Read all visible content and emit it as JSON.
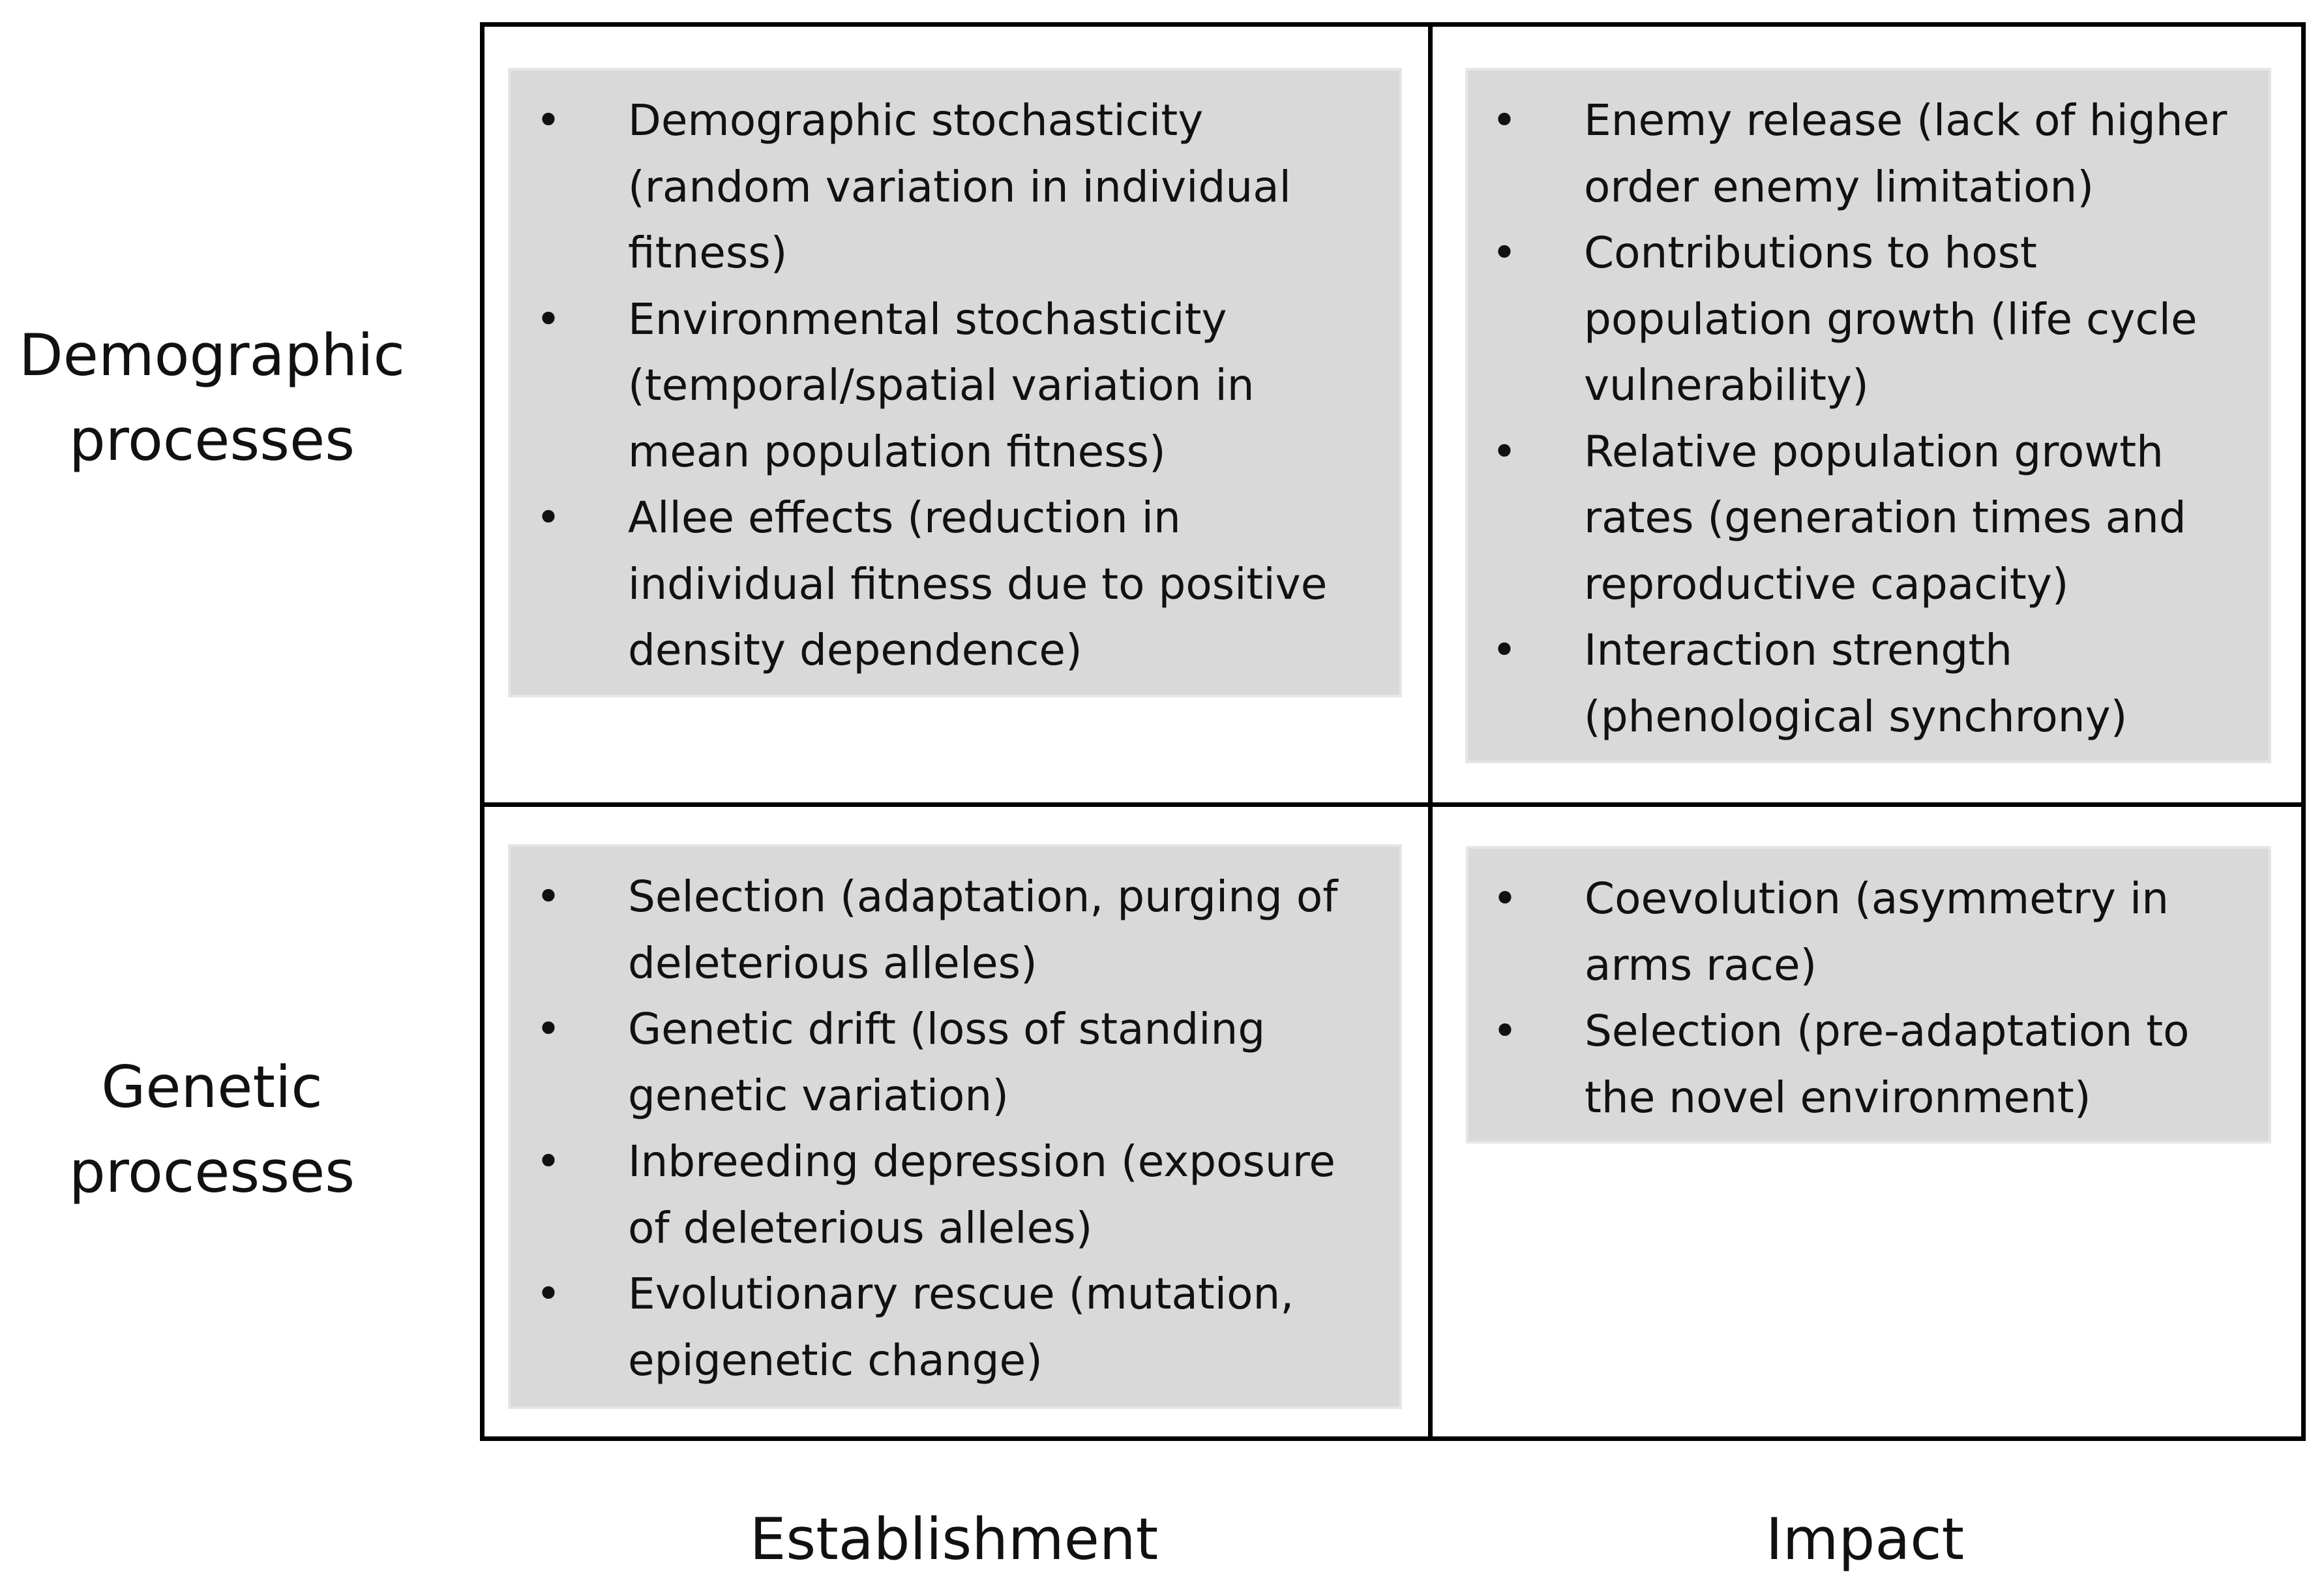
{
  "row_labels": {
    "demographic": [
      "Demographic",
      "processes"
    ],
    "genetic": [
      "Genetic",
      "processes"
    ]
  },
  "column_labels": {
    "establishment": "Establishment",
    "impact": "Impact"
  },
  "bullet_symbol": "•",
  "cells": {
    "demographic_establishment": [
      [
        "Demographic stochasticity",
        "(random variation in individual",
        "fitness)"
      ],
      [
        "Environmental stochasticity",
        "(temporal/spatial variation in",
        "mean population fitness)"
      ],
      [
        "Allee effects (reduction in",
        "individual fitness due to positive",
        "density dependence)"
      ]
    ],
    "demographic_impact": [
      [
        "Enemy release (lack of higher",
        "order enemy limitation)"
      ],
      [
        "Contributions to host",
        "population growth (life cycle",
        "vulnerability)"
      ],
      [
        "Relative population growth",
        "rates (generation times and",
        "reproductive capacity)"
      ],
      [
        "Interaction strength",
        "(phenological synchrony)"
      ]
    ],
    "genetic_establishment": [
      [
        "Selection (adaptation, purging of",
        "deleterious alleles)"
      ],
      [
        "Genetic drift (loss of standing",
        "genetic variation)"
      ],
      [
        "Inbreeding depression (exposure",
        "of deleterious alleles)"
      ],
      [
        "Evolutionary rescue (mutation,",
        "epigenetic change)"
      ]
    ],
    "genetic_impact": [
      [
        "Coevolution (asymmetry in",
        "arms race)"
      ],
      [
        "Selection (pre-adaptation to",
        "the novel environment)"
      ]
    ]
  },
  "colors": {
    "box_fill": "#d9d9d9",
    "grid_lines": "#000000"
  }
}
